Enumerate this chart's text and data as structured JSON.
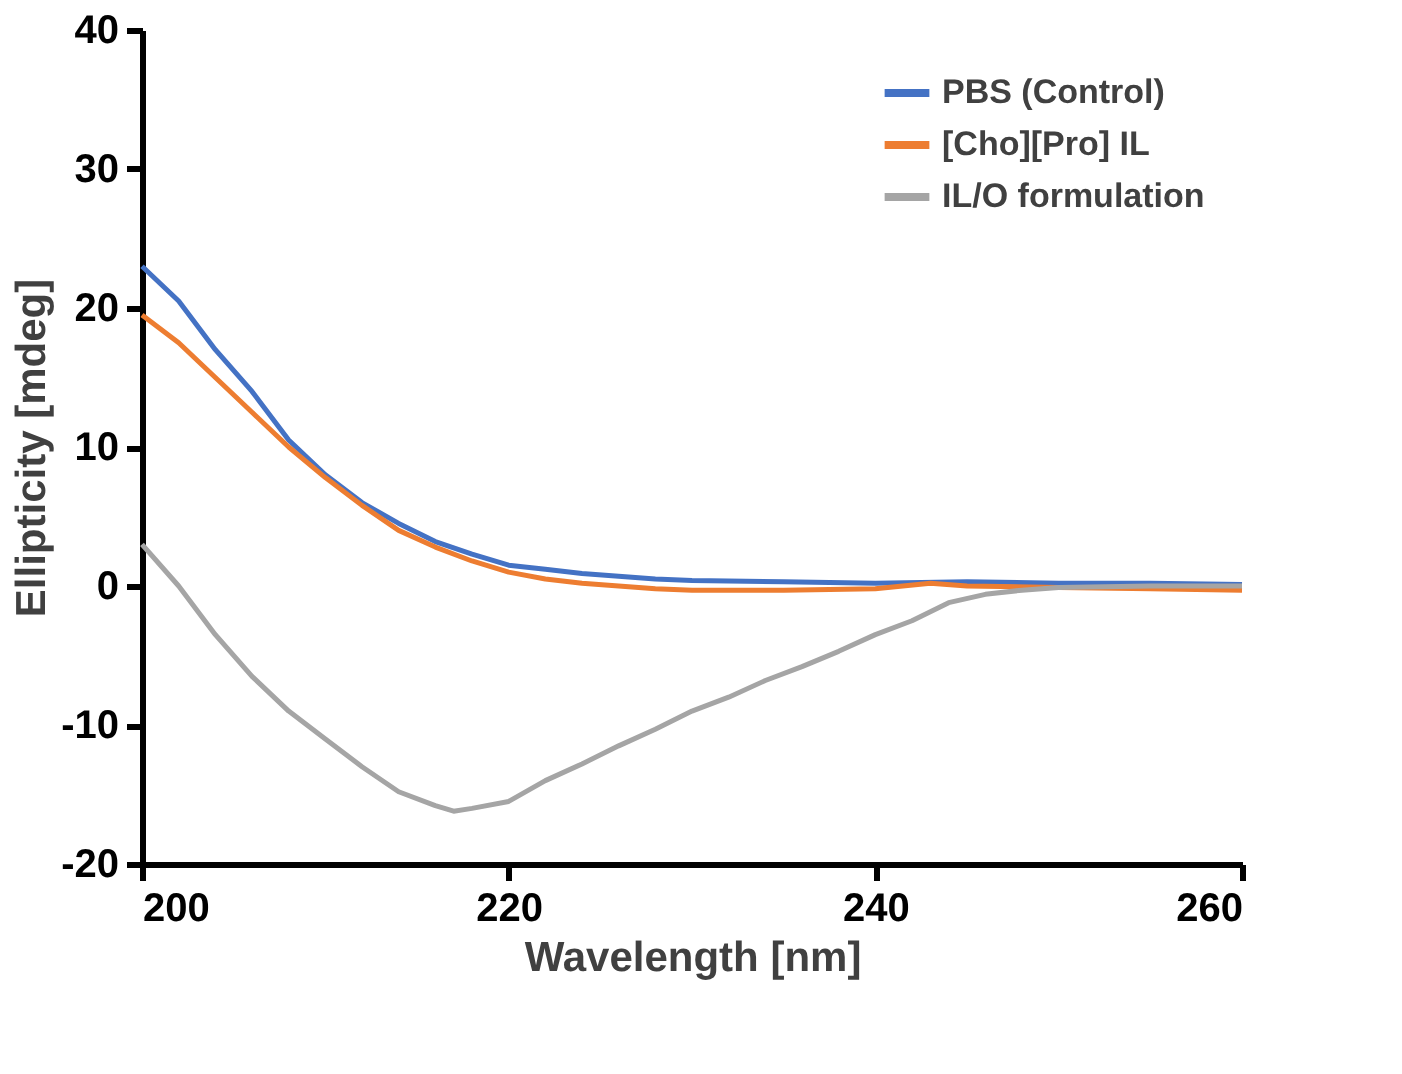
{
  "chart_data": {
    "type": "line",
    "xlabel": "Wavelength [nm]",
    "ylabel": "Ellipticity [mdeg]",
    "xlim": [
      200,
      260
    ],
    "xticks": [
      200,
      220,
      240,
      260
    ],
    "ylim": [
      -20,
      40
    ],
    "yticks": [
      -20,
      -10,
      0,
      10,
      20,
      30,
      40
    ],
    "grid": false,
    "legend": "top right",
    "marker": "none",
    "line_style": "solid",
    "series": [
      {
        "name": "PBS (Control)",
        "color": "#4472c4",
        "x": [
          200,
          202,
          204,
          206,
          208,
          210,
          212,
          214,
          216,
          218,
          220,
          222,
          224,
          226,
          228,
          230,
          235,
          240,
          245,
          250,
          255,
          260
        ],
        "values": [
          23,
          20.5,
          17,
          14,
          10.5,
          8,
          6,
          4.5,
          3.2,
          2.3,
          1.5,
          1.2,
          0.9,
          0.7,
          0.5,
          0.4,
          0.3,
          0.2,
          0.3,
          0.2,
          0.2,
          0.1
        ]
      },
      {
        "name": "[Cho][Pro] IL",
        "color": "#ed7d31",
        "x": [
          200,
          202,
          204,
          206,
          208,
          210,
          212,
          214,
          216,
          218,
          220,
          222,
          224,
          226,
          228,
          230,
          235,
          240,
          243,
          245,
          250,
          255,
          260
        ],
        "values": [
          19.5,
          17.5,
          15,
          12.5,
          10,
          7.8,
          5.8,
          4,
          2.8,
          1.8,
          1,
          0.5,
          0.2,
          0,
          -0.2,
          -0.3,
          -0.3,
          -0.2,
          0.2,
          0,
          -0.1,
          -0.2,
          -0.3
        ]
      },
      {
        "name": "IL/O formulation",
        "color": "#a5a5a5",
        "x": [
          200,
          202,
          204,
          206,
          208,
          210,
          212,
          214,
          216,
          217,
          218,
          220,
          222,
          224,
          226,
          228,
          230,
          232,
          234,
          236,
          238,
          240,
          242,
          244,
          246,
          248,
          250,
          255,
          260
        ],
        "values": [
          3,
          0,
          -3.5,
          -6.5,
          -9,
          -11,
          -13,
          -14.8,
          -15.8,
          -16.2,
          -16,
          -15.5,
          -14,
          -12.8,
          -11.5,
          -10.3,
          -9,
          -8,
          -6.8,
          -5.8,
          -4.7,
          -3.5,
          -2.5,
          -1.2,
          -0.6,
          -0.3,
          -0.1,
          0,
          0
        ]
      }
    ]
  }
}
